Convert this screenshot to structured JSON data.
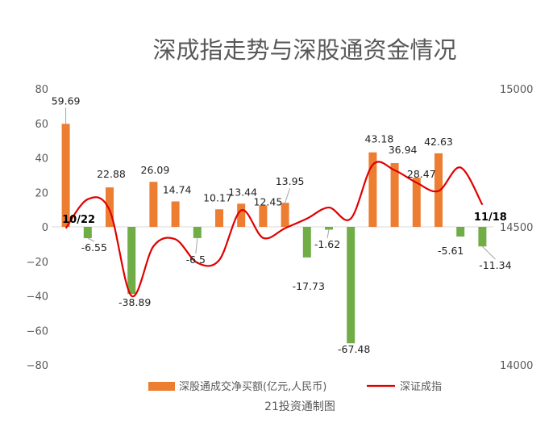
{
  "chart_data": {
    "type": "bar",
    "title": "深成指走势与深股通资金情况",
    "source_note": "21投资通制图",
    "categories": [
      "10/22",
      "",
      "",
      "",
      "",
      "",
      "",
      "",
      "",
      "",
      "",
      "",
      "",
      "",
      "",
      "",
      "",
      "",
      "",
      "11/18"
    ],
    "series": [
      {
        "name": "深股通成交净买额(亿元,人民币)",
        "type": "bar",
        "axis": "left",
        "values": [
          59.69,
          -6.55,
          22.88,
          -38.89,
          26.09,
          14.74,
          -6.5,
          10.17,
          13.44,
          12.45,
          13.95,
          -17.73,
          -1.62,
          -67.48,
          43.18,
          36.94,
          28.47,
          42.63,
          -5.61,
          -11.34
        ],
        "labels": [
          "59.69",
          "-6.55",
          "22.88",
          "-38.89",
          "26.09",
          "14.74",
          "-6.5",
          "10.17",
          "13.44",
          "12.45",
          "13.95",
          "-17.73",
          "-1.62",
          "-67.48",
          "43.18",
          "36.94",
          "28.47",
          "42.63",
          "-5.61",
          "-11.34"
        ]
      },
      {
        "name": "深证成指",
        "type": "line",
        "axis": "right",
        "values": [
          14495,
          14600,
          14560,
          14250,
          14430,
          14455,
          14370,
          14380,
          14560,
          14460,
          14495,
          14530,
          14570,
          14530,
          14725,
          14705,
          14660,
          14630,
          14715,
          14580
        ]
      }
    ],
    "y_left": {
      "min": -80,
      "max": 80,
      "ticks": [
        "80",
        "60",
        "40",
        "20",
        "0",
        "−20",
        "−40",
        "−60",
        "−80"
      ]
    },
    "y_right": {
      "min": 14000,
      "max": 15000,
      "ticks": [
        "15000",
        "14500",
        "14000"
      ]
    },
    "grid": false,
    "legend_position": "bottom",
    "colors": {
      "positive_bar": "#ED7D31",
      "negative_bar": "#70AD47",
      "line": "#E00000",
      "axis_text": "#595959",
      "title": "#595959"
    }
  }
}
